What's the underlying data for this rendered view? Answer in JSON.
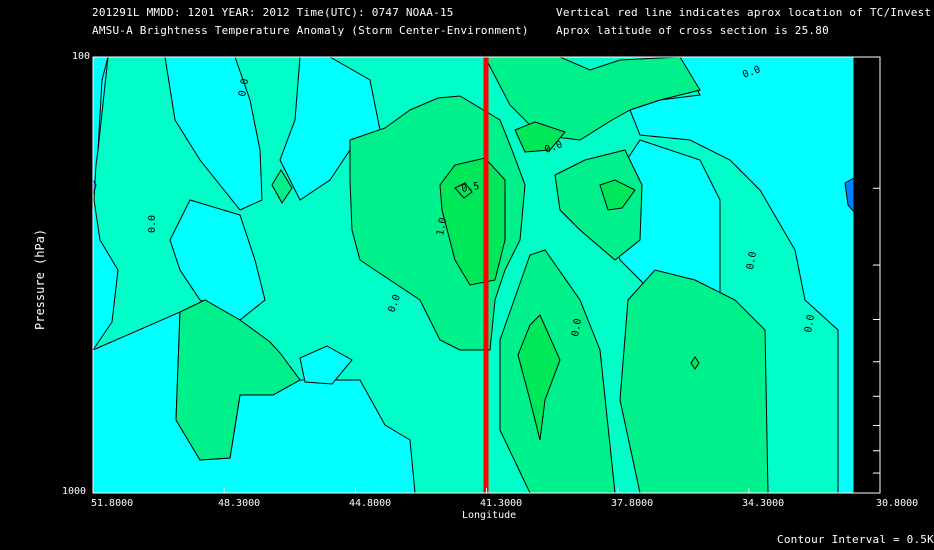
{
  "header": {
    "line1_left": "201291L  MMDD: 1201 YEAR: 2012 Time(UTC): 0747 NOAA-15",
    "line2_left": "AMSU-A Brightness Temperature Anomaly (Storm Center-Environment)",
    "line1_right": "Vertical red line indicates aprox location of TC/Invest",
    "line2_right": "Aprox latitude of cross section is 25.80"
  },
  "footer": {
    "contour_interval": "Contour Interval = 0.5K"
  },
  "colors": {
    "background": "#000000",
    "level_neg": "#00ffff",
    "level_0": "#00ffc8",
    "level_05": "#00f08c",
    "level_1": "#00e85a",
    "line_marker": "#ff0000",
    "contour": "#000000",
    "outlier": "#0080ff"
  },
  "chart_data": {
    "type": "contour",
    "title": "AMSU-A Brightness Temperature Anomaly (Storm Center-Environment)",
    "xlabel": "Longitude",
    "ylabel": "Pressure (hPa)",
    "x_ticks": [
      "51.8000",
      "48.3000",
      "44.8000",
      "41.3000",
      "37.8000",
      "34.3000",
      "30.8000"
    ],
    "x_tick_values": [
      51.8,
      48.3,
      44.8,
      41.3,
      37.8,
      34.3,
      30.8
    ],
    "xlim": [
      51.8,
      30.8
    ],
    "y_ticks": [
      "100",
      "1000"
    ],
    "ylim": [
      1000,
      100
    ],
    "y_scale": "log",
    "marker_longitude": 41.3,
    "contour_labels": [
      "0.0",
      "0.0",
      "0.0",
      "0.0",
      "0.0",
      "0.0",
      "0.0",
      "0.0",
      "0.5",
      "1.0"
    ],
    "contour_interval_K": 0.5
  }
}
